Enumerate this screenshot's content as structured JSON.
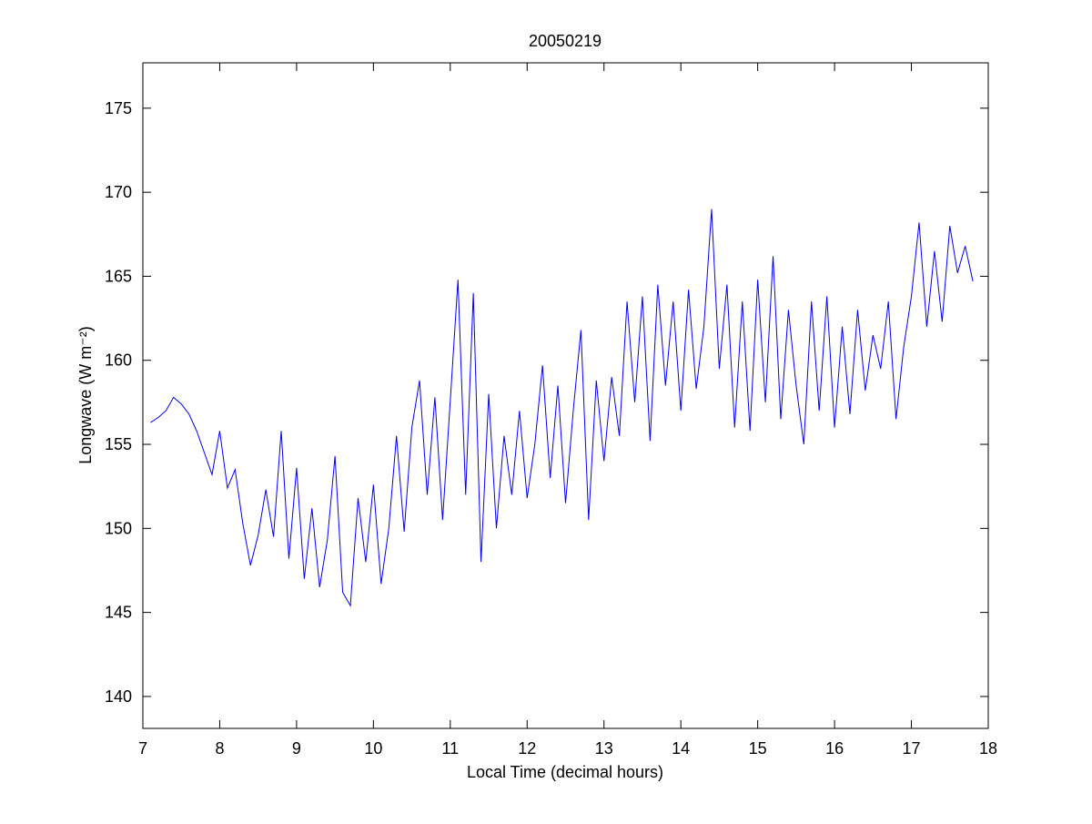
{
  "chart_data": {
    "type": "line",
    "title": "20050219",
    "xlabel": "Local Time (decimal hours)",
    "ylabel": "Longwave (W m⁻²)",
    "x": [
      7.1,
      7.2,
      7.3,
      7.4,
      7.5,
      7.6,
      7.7,
      7.8,
      7.9,
      8.0,
      8.1,
      8.2,
      8.3,
      8.4,
      8.5,
      8.6,
      8.7,
      8.8,
      8.9,
      9.0,
      9.1,
      9.2,
      9.3,
      9.4,
      9.5,
      9.6,
      9.7,
      9.8,
      9.9,
      10.0,
      10.1,
      10.2,
      10.3,
      10.4,
      10.5,
      10.6,
      10.7,
      10.8,
      10.9,
      11.0,
      11.1,
      11.2,
      11.3,
      11.4,
      11.5,
      11.6,
      11.7,
      11.8,
      11.9,
      12.0,
      12.1,
      12.2,
      12.3,
      12.4,
      12.5,
      12.6,
      12.7,
      12.8,
      12.9,
      13.0,
      13.1,
      13.2,
      13.3,
      13.4,
      13.5,
      13.6,
      13.7,
      13.8,
      13.9,
      14.0,
      14.1,
      14.2,
      14.3,
      14.4,
      14.5,
      14.6,
      14.7,
      14.8,
      14.9,
      15.0,
      15.1,
      15.2,
      15.3,
      15.4,
      15.5,
      15.6,
      15.7,
      15.8,
      15.9,
      16.0,
      16.1,
      16.2,
      16.3,
      16.4,
      16.5,
      16.6,
      16.7,
      16.8,
      16.9,
      17.0,
      17.1,
      17.2,
      17.3,
      17.4,
      17.5,
      17.6,
      17.7,
      17.8
    ],
    "series": [
      {
        "color": "#0000ff",
        "values": [
          156.3,
          156.6,
          157.0,
          157.8,
          157.4,
          156.8,
          155.8,
          154.5,
          153.2,
          155.8,
          152.4,
          153.5,
          150.3,
          147.8,
          149.6,
          152.3,
          149.5,
          155.8,
          148.2,
          153.6,
          147.0,
          151.2,
          146.5,
          149.3,
          154.3,
          146.2,
          145.4,
          151.8,
          148.0,
          152.6,
          146.7,
          150.0,
          155.5,
          149.8,
          156.0,
          158.8,
          152.0,
          157.8,
          150.5,
          157.6,
          164.8,
          152.0,
          164.0,
          148.0,
          158.0,
          150.0,
          155.5,
          152.0,
          157.0,
          151.8,
          155.0,
          159.7,
          153.0,
          158.5,
          151.5,
          157.0,
          161.8,
          150.5,
          158.8,
          154.0,
          159.0,
          155.5,
          163.5,
          157.5,
          163.8,
          155.2,
          164.5,
          158.5,
          163.5,
          157.0,
          164.2,
          158.3,
          162.0,
          169.0,
          159.5,
          164.5,
          156.0,
          163.5,
          155.8,
          164.8,
          157.5,
          166.2,
          156.5,
          163.0,
          158.5,
          155.0,
          163.5,
          157.0,
          163.8,
          156.0,
          162.0,
          156.8,
          163.0,
          158.2,
          161.5,
          159.5,
          163.5,
          156.5,
          160.8,
          163.8,
          168.2,
          162.0,
          166.5,
          162.3,
          168.0,
          165.2,
          166.8,
          164.7
        ]
      }
    ],
    "xlim": [
      7,
      18
    ],
    "xticks": [
      7,
      8,
      9,
      10,
      11,
      12,
      13,
      14,
      15,
      16,
      17,
      18
    ],
    "ylim": [
      138.1,
      177.7
    ],
    "yticks": [
      140,
      145,
      150,
      155,
      160,
      165,
      170,
      175
    ]
  }
}
